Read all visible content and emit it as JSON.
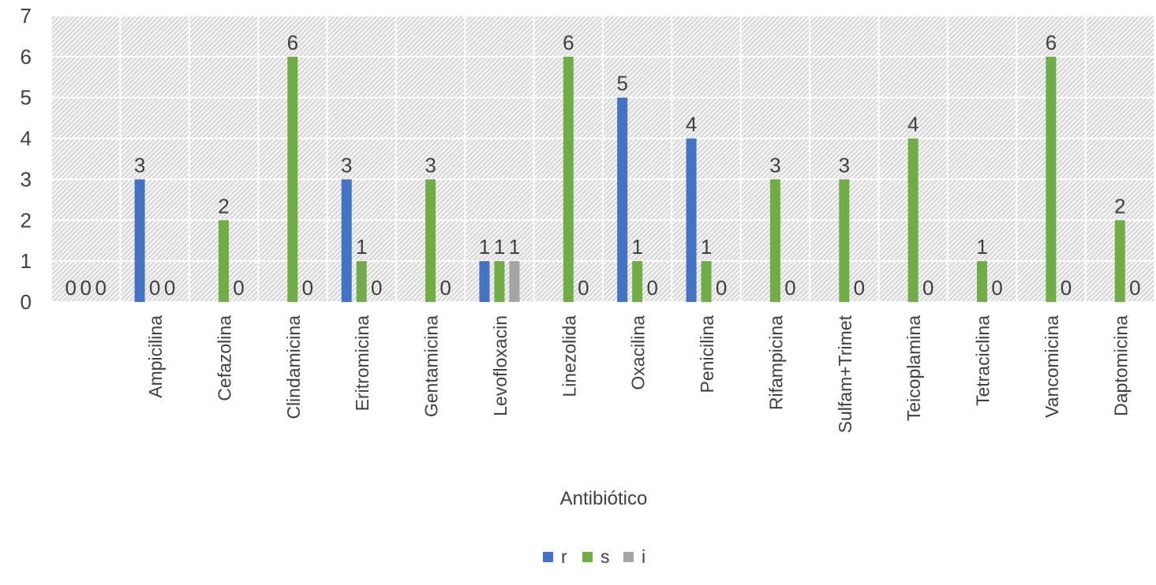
{
  "chart_data": {
    "type": "bar",
    "title": "",
    "xlabel": "Antibiótico",
    "ylabel": "",
    "ylim": [
      0,
      7
    ],
    "yticks": [
      "0",
      "1",
      "2",
      "3",
      "4",
      "5",
      "6",
      "7"
    ],
    "grid": true,
    "legend_position": "bottom",
    "categories": [
      "",
      "Ampicilina",
      "Cefazolina",
      "Clindamicina",
      "Eritromicina",
      "Gentamicina",
      "Levofloxacin",
      "Linezolida",
      "Oxacilina",
      "Penicilina",
      "Rifampicina",
      "Sulfam+Trimet",
      "Teicoplamina",
      "Tetraciclina",
      "Vancomicina",
      "Daptomicina"
    ],
    "series": [
      {
        "name": "r",
        "color": "#4472c4",
        "values": [
          0,
          3,
          0,
          0,
          3,
          0,
          1,
          0,
          5,
          4,
          0,
          0,
          0,
          0,
          0,
          0
        ]
      },
      {
        "name": "s",
        "color": "#70ad47",
        "values": [
          0,
          0,
          2,
          6,
          1,
          3,
          1,
          6,
          1,
          1,
          3,
          3,
          4,
          1,
          6,
          2
        ]
      },
      {
        "name": "i",
        "color": "#a5a5a5",
        "values": [
          0,
          0,
          0,
          0,
          0,
          0,
          1,
          0,
          0,
          0,
          0,
          0,
          0,
          0,
          0,
          0
        ]
      }
    ],
    "data_labels": [
      [
        "0",
        "0",
        "0"
      ],
      [
        "3",
        "0",
        "0"
      ],
      [
        "",
        "2",
        "0"
      ],
      [
        "",
        "6",
        "0"
      ],
      [
        "3",
        "1",
        "0"
      ],
      [
        "",
        "3",
        "0"
      ],
      [
        "1",
        "1",
        "1"
      ],
      [
        "",
        "6",
        "0"
      ],
      [
        "5",
        "1",
        "0"
      ],
      [
        "4",
        "1",
        "0"
      ],
      [
        "",
        "3",
        "0"
      ],
      [
        "",
        "3",
        "0"
      ],
      [
        "",
        "4",
        "0"
      ],
      [
        "",
        "1",
        "0"
      ],
      [
        "",
        "6",
        "0"
      ],
      [
        "",
        "2",
        "0"
      ]
    ]
  }
}
